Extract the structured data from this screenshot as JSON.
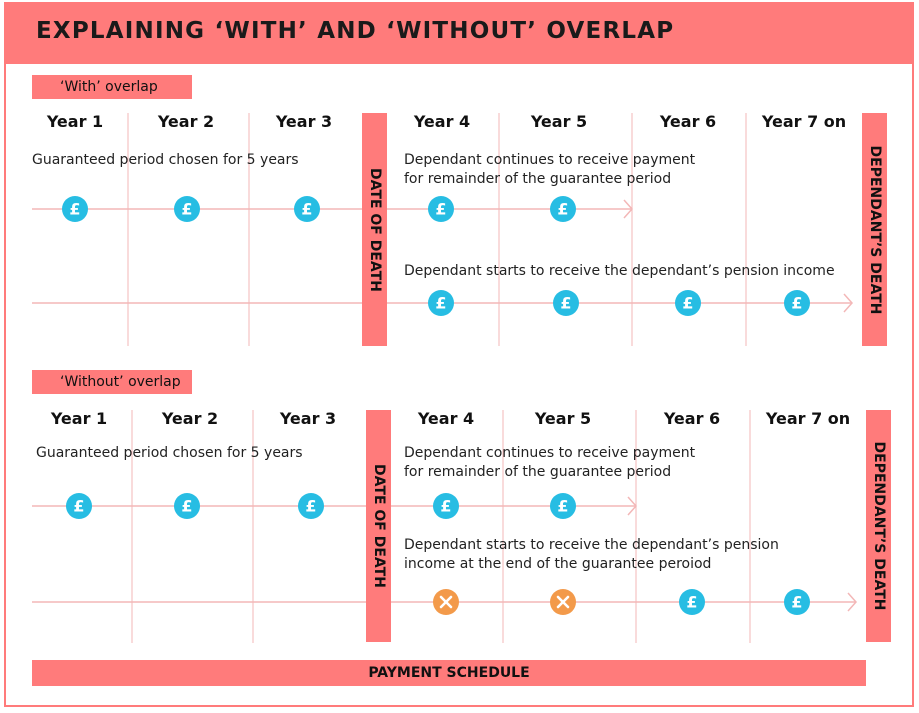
{
  "title": "EXPLAINING ‘WITH’ AND ‘WITHOUT’ OVERLAP",
  "colors": {
    "accent": "#ff7b7b",
    "pound": "#27bde3",
    "cross": "#f39a4a",
    "grid": "#f3b7b7"
  },
  "sections": [
    {
      "label": "‘With’ overlap",
      "years": [
        "Year 1",
        "Year 2",
        "Year 3",
        "Year 4",
        "Year 5",
        "Year 6",
        "Year 7 on"
      ],
      "guaranteed_text": "Guaranteed period chosen for 5 years",
      "continues_text": [
        "Dependant continues to receive payment",
        "for remainder of the guarantee period"
      ],
      "starts_text": [
        "Dependant starts to receive the dependant’s pension income"
      ],
      "date_of_death": "DATE OF DEATH",
      "dependants_death": "DEPENDANT’S DEATH",
      "row1_icons": [
        "pound-icon",
        "pound-icon",
        "pound-icon",
        "pound-icon",
        "pound-icon"
      ],
      "row2_icons": [
        "pound-icon",
        "pound-icon",
        "pound-icon",
        "pound-icon"
      ]
    },
    {
      "label": "‘Without’ overlap",
      "years": [
        "Year 1",
        "Year 2",
        "Year 3",
        "Year 4",
        "Year 5",
        "Year 6",
        "Year 7 on"
      ],
      "guaranteed_text": "Guaranteed period chosen for 5 years",
      "continues_text": [
        "Dependant continues to receive payment",
        "for remainder of the guarantee period"
      ],
      "starts_text": [
        "Dependant starts to receive the dependant’s pension",
        "income at the end of the guarantee peroiod"
      ],
      "date_of_death": "DATE OF DEATH",
      "dependants_death": "DEPENDANT’S DEATH",
      "row1_icons": [
        "pound-icon",
        "pound-icon",
        "pound-icon",
        "pound-icon",
        "pound-icon"
      ],
      "row2_icons": [
        "cross-icon",
        "cross-icon",
        "pound-icon",
        "pound-icon"
      ]
    }
  ],
  "payment_schedule": "PAYMENT SCHEDULE"
}
